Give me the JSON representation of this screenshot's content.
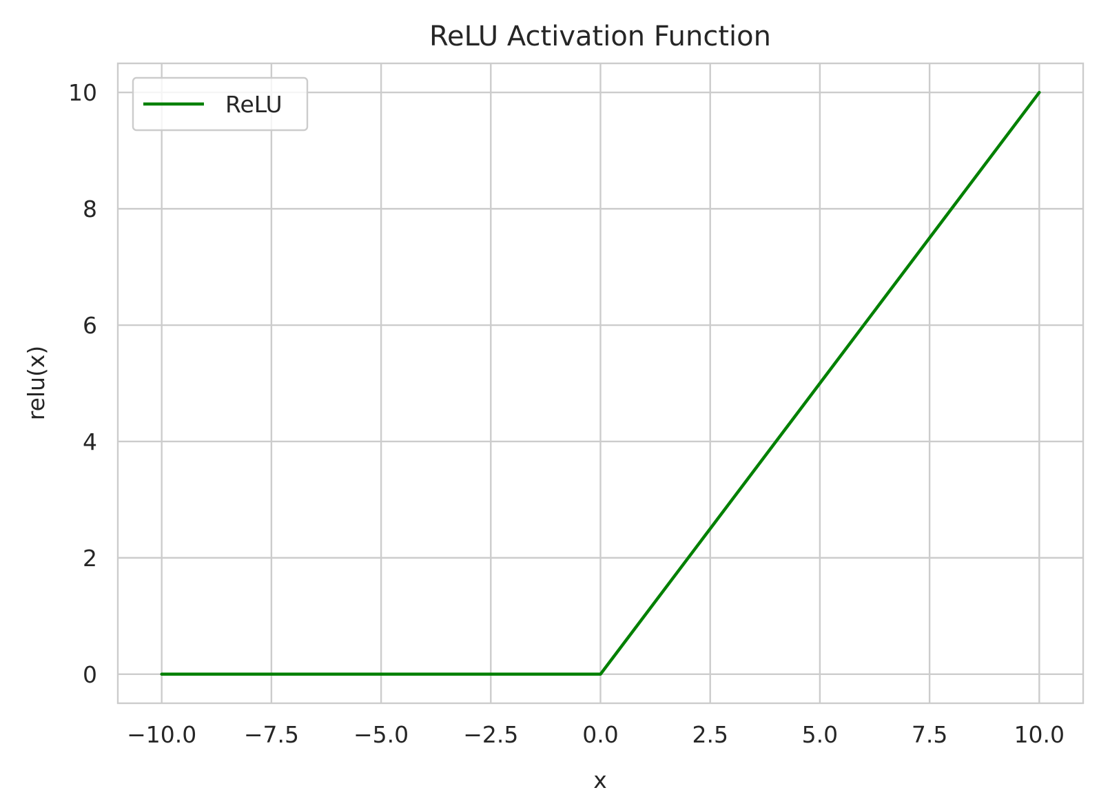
{
  "chart_data": {
    "type": "line",
    "title": "ReLU Activation Function",
    "xlabel": "x",
    "ylabel": "relu(x)",
    "xlim": [
      -11.0,
      11.0
    ],
    "ylim": [
      -0.5,
      10.5
    ],
    "xticks": [
      -10.0,
      -7.5,
      -5.0,
      -2.5,
      0.0,
      2.5,
      5.0,
      7.5,
      10.0
    ],
    "xtick_labels": [
      "−10.0",
      "−7.5",
      "−5.0",
      "−2.5",
      "0.0",
      "2.5",
      "5.0",
      "7.5",
      "10.0"
    ],
    "yticks": [
      0,
      2,
      4,
      6,
      8,
      10
    ],
    "ytick_labels": [
      "0",
      "2",
      "4",
      "6",
      "8",
      "10"
    ],
    "grid": true,
    "legend_position": "top-left",
    "series": [
      {
        "name": "ReLU",
        "color": "#008000",
        "x": [
          -10.0,
          0.0,
          10.0
        ],
        "y": [
          0.0,
          0.0,
          10.0
        ]
      }
    ]
  }
}
